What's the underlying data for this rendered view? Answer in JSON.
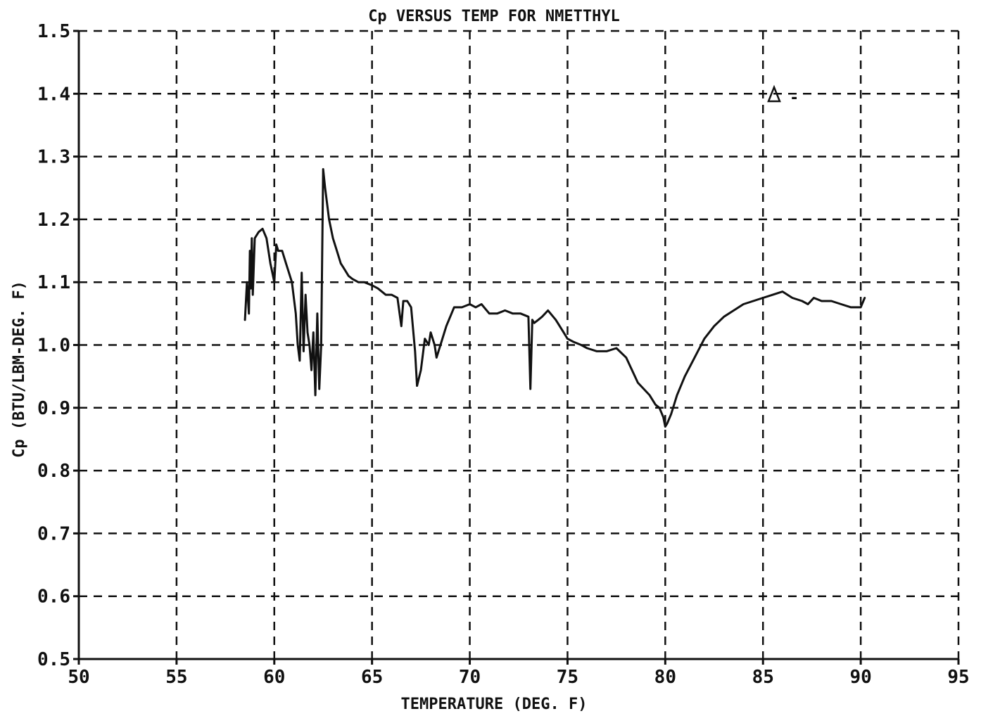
{
  "chart_data": {
    "type": "line",
    "title": "Cp VERSUS TEMP FOR NMETTHYL",
    "xlabel": "TEMPERATURE (DEG. F)",
    "ylabel": "Cp (BTU/LBM-DEG. F)",
    "xlim": [
      50,
      95
    ],
    "ylim": [
      0.5,
      1.5
    ],
    "grid": true,
    "x_ticks": [
      "50",
      "55",
      "60",
      "65",
      "70",
      "75",
      "80",
      "85",
      "90",
      "95"
    ],
    "y_ticks": [
      "0.5",
      "0.6",
      "0.7",
      "0.8",
      "0.9",
      "1.0",
      "1.1",
      "1.2",
      "1.3",
      "1.4",
      "1.5"
    ],
    "legend": {
      "marker": "triangle",
      "text": "-",
      "position": "top-right"
    },
    "series": [
      {
        "color": "#111111",
        "x": [
          58.5,
          58.6,
          58.7,
          58.75,
          58.8,
          58.85,
          58.9,
          59.0,
          59.2,
          59.4,
          59.6,
          59.8,
          60.0,
          60.1,
          60.2,
          60.4,
          60.6,
          60.9,
          61.1,
          61.2,
          61.3,
          61.4,
          61.5,
          61.6,
          61.7,
          61.8,
          61.9,
          62.0,
          62.1,
          62.2,
          62.3,
          62.4,
          62.5,
          62.6,
          62.8,
          63.0,
          63.2,
          63.4,
          63.6,
          63.8,
          64.0,
          64.3,
          64.6,
          65.0,
          65.3,
          65.7,
          66.0,
          66.3,
          66.5,
          66.6,
          66.7,
          66.8,
          67.0,
          67.2,
          67.3,
          67.5,
          67.7,
          67.9,
          68.0,
          68.2,
          68.3,
          68.5,
          68.8,
          69.2,
          69.6,
          70.0,
          70.3,
          70.6,
          71.0,
          71.4,
          71.8,
          72.2,
          72.6,
          73.0,
          73.1,
          73.2,
          73.3,
          73.5,
          73.7,
          74.0,
          74.4,
          74.8,
          75.0,
          75.3,
          75.7,
          76.0,
          76.5,
          77.0,
          77.5,
          78.0,
          78.3,
          78.6,
          78.9,
          79.2,
          79.5,
          79.7,
          79.9,
          80.0,
          80.1,
          80.3,
          80.6,
          81.0,
          81.5,
          82.0,
          82.5,
          83.0,
          83.5,
          84.0,
          84.5,
          85.0,
          85.5,
          86.0,
          86.5,
          87.0,
          87.3,
          87.6,
          88.0,
          88.5,
          89.0,
          89.5,
          90.0,
          90.2
        ],
        "y": [
          1.04,
          1.1,
          1.05,
          1.15,
          1.09,
          1.17,
          1.08,
          1.17,
          1.18,
          1.185,
          1.17,
          1.13,
          1.1,
          1.16,
          1.15,
          1.15,
          1.13,
          1.1,
          1.05,
          1.0,
          0.975,
          1.115,
          0.99,
          1.08,
          1.02,
          1.0,
          0.96,
          1.02,
          0.92,
          1.05,
          0.93,
          1.0,
          1.28,
          1.25,
          1.2,
          1.17,
          1.15,
          1.13,
          1.12,
          1.11,
          1.105,
          1.1,
          1.1,
          1.095,
          1.09,
          1.08,
          1.08,
          1.075,
          1.03,
          1.07,
          1.07,
          1.07,
          1.06,
          0.99,
          0.935,
          0.96,
          1.01,
          1.0,
          1.02,
          1.0,
          0.98,
          1.0,
          1.03,
          1.06,
          1.06,
          1.065,
          1.06,
          1.065,
          1.05,
          1.05,
          1.055,
          1.05,
          1.05,
          1.045,
          0.93,
          1.04,
          1.035,
          1.04,
          1.045,
          1.055,
          1.04,
          1.02,
          1.01,
          1.005,
          1.0,
          0.995,
          0.99,
          0.99,
          0.995,
          0.98,
          0.96,
          0.94,
          0.93,
          0.92,
          0.905,
          0.9,
          0.885,
          0.87,
          0.875,
          0.89,
          0.92,
          0.95,
          0.98,
          1.01,
          1.03,
          1.045,
          1.055,
          1.065,
          1.07,
          1.075,
          1.08,
          1.085,
          1.075,
          1.07,
          1.065,
          1.075,
          1.07,
          1.07,
          1.065,
          1.06,
          1.06,
          1.075
        ]
      }
    ]
  }
}
